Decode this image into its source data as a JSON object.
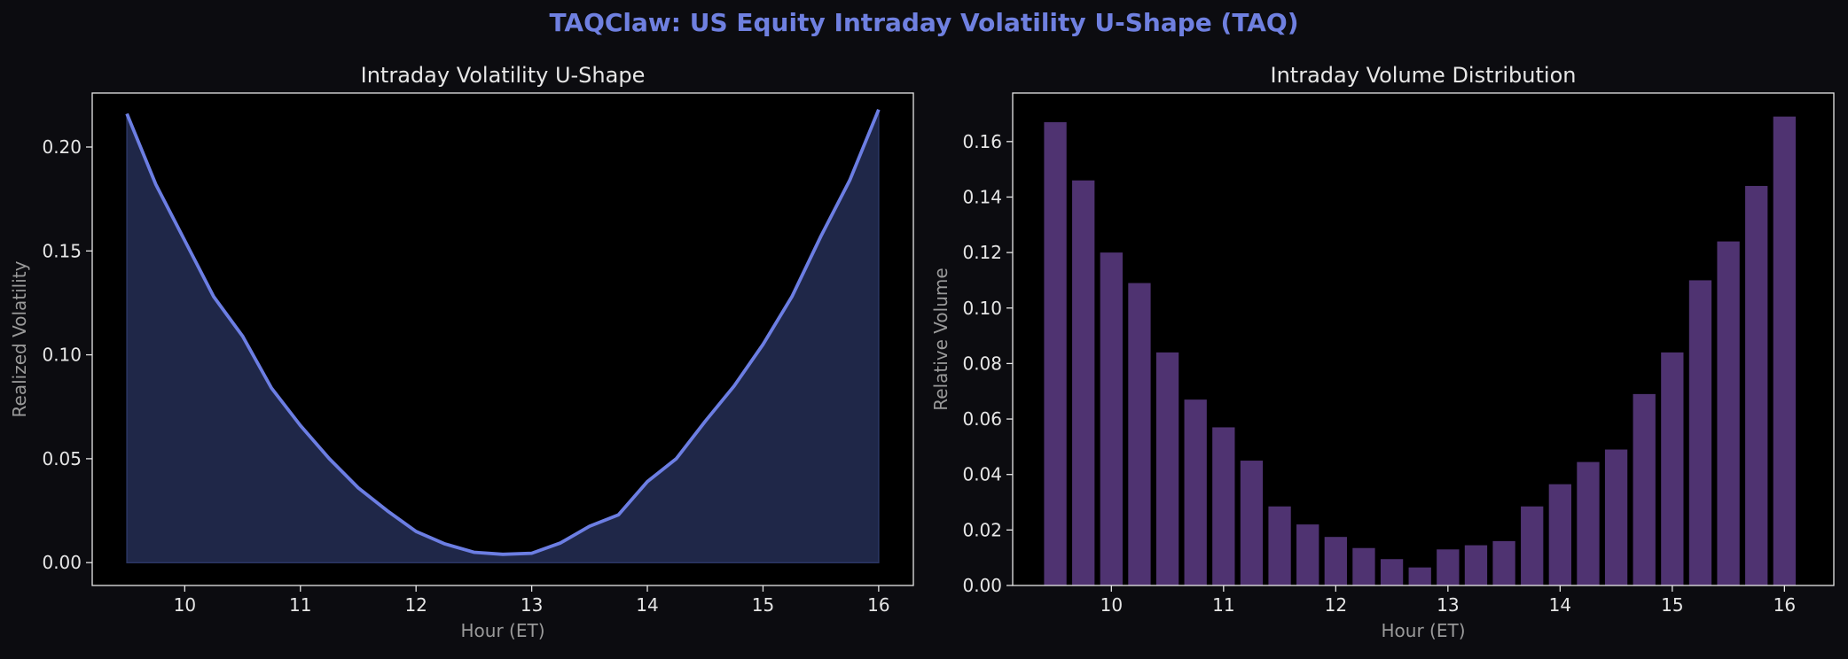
{
  "figure": {
    "title": "TAQClaw: US Equity Intraday Volatility U-Shape (TAQ)",
    "title_color": "#6f80e0",
    "background": "#0c0c10",
    "axes_background": "#000000",
    "text_color": "#e6e6e6",
    "label_color": "#9a9a9a"
  },
  "chart_data": [
    {
      "type": "area",
      "title": "Intraday Volatility U-Shape",
      "xlabel": "Hour (ET)",
      "ylabel": "Realized Volatility",
      "xlim": [
        9.2,
        16.3
      ],
      "ylim": [
        -0.011,
        0.226
      ],
      "xticks": [
        10,
        11,
        12,
        13,
        14,
        15,
        16
      ],
      "xtick_labels": [
        "10",
        "11",
        "12",
        "13",
        "14",
        "15",
        "16"
      ],
      "yticks": [
        0.0,
        0.05,
        0.1,
        0.15,
        0.2
      ],
      "ytick_labels": [
        "0.00",
        "0.05",
        "0.10",
        "0.15",
        "0.20"
      ],
      "line_color": "#6c7ee3",
      "fill_color": "#1f2748",
      "x": [
        9.5,
        9.75,
        10.0,
        10.25,
        10.5,
        10.75,
        11.0,
        11.25,
        11.5,
        11.75,
        12.0,
        12.25,
        12.5,
        12.75,
        13.0,
        13.25,
        13.5,
        13.75,
        14.0,
        14.25,
        14.5,
        14.75,
        15.0,
        15.25,
        15.5,
        15.75,
        16.0
      ],
      "values": [
        0.216,
        0.182,
        0.155,
        0.128,
        0.109,
        0.084,
        0.066,
        0.05,
        0.036,
        0.025,
        0.015,
        0.009,
        0.005,
        0.004,
        0.0045,
        0.0095,
        0.0175,
        0.023,
        0.039,
        0.05,
        0.068,
        0.085,
        0.105,
        0.128,
        0.157,
        0.184,
        0.218
      ],
      "grid": false,
      "legend": "none"
    },
    {
      "type": "bar",
      "title": "Intraday Volume Distribution",
      "xlabel": "Hour (ET)",
      "ylabel": "Relative Volume",
      "xlim": [
        9.12,
        16.44
      ],
      "ylim": [
        0.0,
        0.1775
      ],
      "xticks": [
        10,
        11,
        12,
        13,
        14,
        15,
        16
      ],
      "xtick_labels": [
        "10",
        "11",
        "12",
        "13",
        "14",
        "15",
        "16"
      ],
      "yticks": [
        0.0,
        0.02,
        0.04,
        0.06,
        0.08,
        0.1,
        0.12,
        0.14,
        0.16
      ],
      "ytick_labels": [
        "0.00",
        "0.02",
        "0.04",
        "0.06",
        "0.08",
        "0.10",
        "0.12",
        "0.14",
        "0.16"
      ],
      "bar_color": "#4f3371",
      "bar_width": 0.2,
      "x": [
        9.5,
        9.75,
        10.0,
        10.25,
        10.5,
        10.75,
        11.0,
        11.25,
        11.5,
        11.75,
        12.0,
        12.25,
        12.5,
        12.75,
        13.0,
        13.25,
        13.5,
        13.75,
        14.0,
        14.25,
        14.5,
        14.75,
        15.0,
        15.25,
        15.5,
        15.75,
        16.0
      ],
      "values": [
        0.167,
        0.146,
        0.12,
        0.109,
        0.084,
        0.067,
        0.057,
        0.045,
        0.0285,
        0.022,
        0.0175,
        0.0135,
        0.0095,
        0.0065,
        0.013,
        0.0145,
        0.016,
        0.0285,
        0.0365,
        0.0445,
        0.049,
        0.069,
        0.084,
        0.11,
        0.124,
        0.144,
        0.169
      ],
      "grid": false,
      "legend": "none"
    }
  ]
}
